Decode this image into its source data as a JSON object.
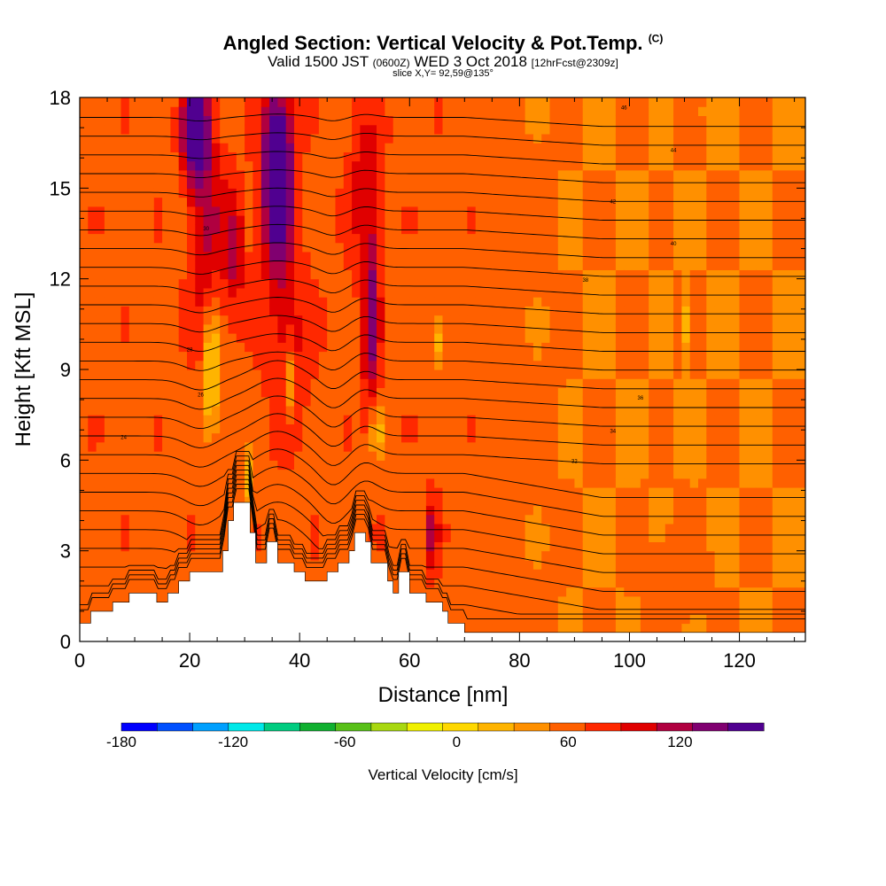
{
  "chart_data": {
    "type": "heatmap",
    "title": "Angled Section: Vertical Velocity & Pot.Temp.",
    "title_mark": "(C)",
    "subtitle_prefix": "Valid 1500 JST",
    "subtitle_utc": "(0600Z)",
    "subtitle_date": "WED 3 Oct 2018",
    "subtitle_fcst": "[12hrFcst@2309z]",
    "slice": "slice X,Y= 92,59@135°",
    "xlabel": "Distance [nm]",
    "ylabel": "Height [Kft MSL]",
    "xlim": [
      0,
      132
    ],
    "ylim": [
      0,
      18
    ],
    "x_ticks": [
      0,
      20,
      40,
      60,
      80,
      100,
      120
    ],
    "y_ticks": [
      0,
      3,
      6,
      9,
      12,
      15,
      18
    ],
    "colorbar": {
      "title": "Vertical Velocity [cm/s]",
      "range": [
        -180,
        150
      ],
      "step": 15,
      "tick_values": [
        -180,
        -120,
        -60,
        0,
        60,
        120
      ],
      "colors": [
        "#0000ff",
        "#0050ff",
        "#00a0ff",
        "#00e8e8",
        "#00cc80",
        "#10b030",
        "#58c018",
        "#a8d810",
        "#f0f000",
        "#ffd800",
        "#ffb400",
        "#ff9000",
        "#ff6000",
        "#ff2800",
        "#e00000",
        "#b00040",
        "#800070",
        "#500090"
      ]
    },
    "terrain": [
      [
        0,
        0.6
      ],
      [
        2,
        0.6
      ],
      [
        2,
        1
      ],
      [
        6,
        1
      ],
      [
        6,
        1.3
      ],
      [
        9,
        1.3
      ],
      [
        9,
        1.6
      ],
      [
        14,
        1.6
      ],
      [
        14,
        1.3
      ],
      [
        16,
        1.3
      ],
      [
        16,
        1.6
      ],
      [
        18,
        1.6
      ],
      [
        18,
        2
      ],
      [
        20,
        2
      ],
      [
        20,
        2.3
      ],
      [
        26,
        2.3
      ],
      [
        26,
        3
      ],
      [
        27,
        3
      ],
      [
        27,
        4
      ],
      [
        28,
        4
      ],
      [
        28,
        4.6
      ],
      [
        31,
        4.6
      ],
      [
        31,
        3.6
      ],
      [
        32,
        3.6
      ],
      [
        32,
        2.6
      ],
      [
        34,
        2.6
      ],
      [
        34,
        3.3
      ],
      [
        36,
        3.3
      ],
      [
        36,
        2.6
      ],
      [
        39,
        2.6
      ],
      [
        39,
        2.3
      ],
      [
        41,
        2.3
      ],
      [
        41,
        2
      ],
      [
        45,
        2
      ],
      [
        45,
        2.3
      ],
      [
        47,
        2.3
      ],
      [
        47,
        2.6
      ],
      [
        49,
        2.6
      ],
      [
        49,
        3
      ],
      [
        50,
        3
      ],
      [
        50,
        3.6
      ],
      [
        52,
        3.6
      ],
      [
        52,
        3.3
      ],
      [
        53,
        3.3
      ],
      [
        53,
        2.6
      ],
      [
        56,
        2.6
      ],
      [
        56,
        2
      ],
      [
        57,
        2
      ],
      [
        57,
        1.6
      ],
      [
        58,
        1.6
      ],
      [
        58,
        2.3
      ],
      [
        60,
        2.3
      ],
      [
        60,
        1.6
      ],
      [
        63,
        1.6
      ],
      [
        63,
        1.3
      ],
      [
        66,
        1.3
      ],
      [
        66,
        1
      ],
      [
        67,
        1
      ],
      [
        67,
        0.6
      ],
      [
        70,
        0.6
      ],
      [
        70,
        0.3
      ],
      [
        132,
        0.3
      ]
    ],
    "theta_contour_labels": [
      "24",
      "26",
      "28",
      "30",
      "32",
      "34",
      "36",
      "38",
      "40",
      "42",
      "44",
      "46"
    ]
  }
}
